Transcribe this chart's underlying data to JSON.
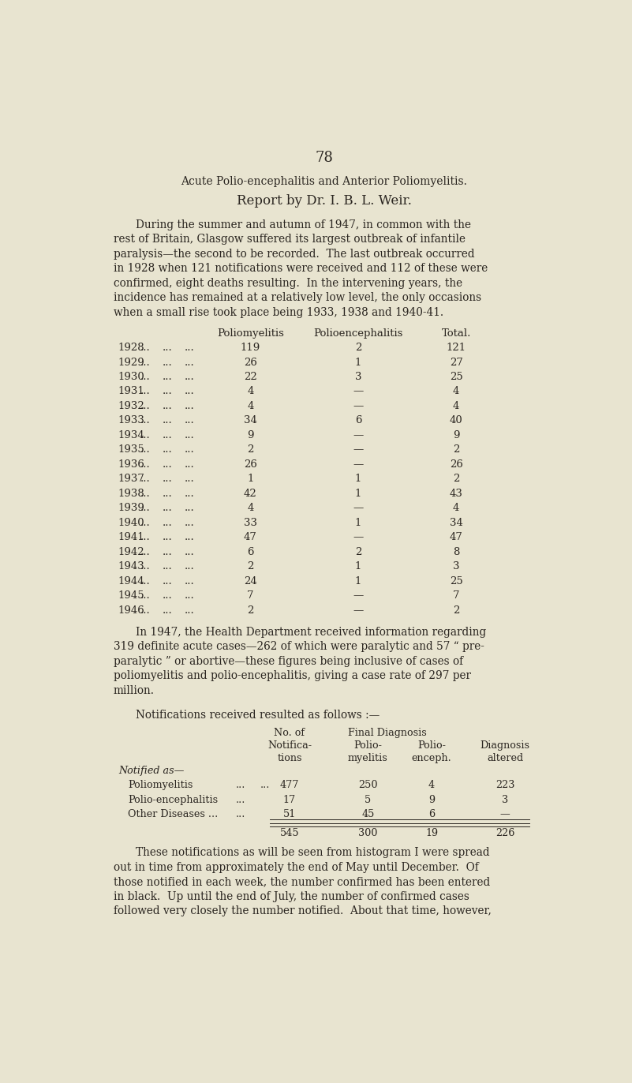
{
  "bg_color": "#e8e4d0",
  "text_color": "#2a2520",
  "page_number": "78",
  "title1": "Acute Polio-encephalitis and Anterior Poliomyelitis.",
  "title2": "Report by Dr. I. B. L. Weir.",
  "para1_lines": [
    "During the summer and autumn of 1947, in common with the",
    "rest of Britain, Glasgow suffered its largest outbreak of infantile",
    "paralysis—the second to be recorded.  The last outbreak occurred",
    "in 1928 when 121 notifications were received and 112 of these were",
    "confirmed, eight deaths resulting.  In the intervening years, the",
    "incidence has remained at a relatively low level, the only occasions",
    "when a small rise took place being 1933, 1938 and 1940-41."
  ],
  "table1_rows": [
    [
      "1928",
      "...",
      "...",
      "...",
      "119",
      "2",
      "121"
    ],
    [
      "1929",
      "...",
      "...",
      "...",
      "26",
      "1",
      "27"
    ],
    [
      "1930",
      "...",
      "...",
      "...",
      "22",
      "3",
      "25"
    ],
    [
      "1931",
      "...",
      "...",
      "...",
      "4",
      "—",
      "4"
    ],
    [
      "1932",
      "...",
      "...",
      "...",
      "4",
      "—",
      "4"
    ],
    [
      "1933",
      "...",
      "...",
      "...",
      "34",
      "6",
      "40"
    ],
    [
      "1934",
      "...",
      "...",
      "...",
      "9",
      "—",
      "9"
    ],
    [
      "1935",
      "...",
      "...",
      "...",
      "2",
      "—",
      "2"
    ],
    [
      "1936",
      "...",
      "...",
      "...",
      "26",
      "—",
      "26"
    ],
    [
      "1937",
      "...",
      "...",
      "...",
      "1",
      "1",
      "2"
    ],
    [
      "1938",
      "...",
      "...",
      "...",
      "42",
      "1",
      "43"
    ],
    [
      "1939",
      "...",
      "...",
      "...",
      "4",
      "—",
      "4"
    ],
    [
      "1940",
      "...",
      "...",
      "...",
      "33",
      "1",
      "34"
    ],
    [
      "1941",
      "...",
      "...",
      "...",
      "47",
      "—",
      "47"
    ],
    [
      "1942",
      "...",
      "...",
      "...",
      "6",
      "2",
      "8"
    ],
    [
      "1943",
      "...",
      "...",
      "...",
      "2",
      "1",
      "3"
    ],
    [
      "1944",
      "...",
      "...",
      "...",
      "24",
      "1",
      "25"
    ],
    [
      "1945",
      "...",
      "...",
      "...",
      "7",
      "—",
      "7"
    ],
    [
      "1946",
      "...",
      "...",
      "...",
      "2",
      "—",
      "2"
    ]
  ],
  "para2_lines": [
    "In 1947, the Health Department received information regarding",
    "319 definite acute cases—262 of which were paralytic and 57 “ pre-",
    "paralytic ” or abortive—these figures being inclusive of cases of",
    "poliomyelitis and polio-encephalitis, giving a case rate of 297 per",
    "million."
  ],
  "notif_header": "Notifications received resulted as follows :—",
  "notif_rows": [
    [
      "Poliomyelitis",
      "...",
      "...",
      "477",
      "250",
      "4",
      "223"
    ],
    [
      "Polio-encephalitis",
      "...",
      "",
      "17",
      "5",
      "9",
      "3"
    ],
    [
      "Other Diseases ...",
      "...",
      "",
      "51",
      "45",
      "6",
      "—"
    ]
  ],
  "notif_totals": [
    "545",
    "300",
    "19",
    "226"
  ],
  "para3_lines": [
    "These notifications as will be seen from histogram I were spread",
    "out in time from approximately the end of May until December.  Of",
    "those notified in each week, the number confirmed has been entered",
    "in black.  Up until the end of July, the number of confirmed cases",
    "followed very closely the number notified.  About that time, however,"
  ]
}
